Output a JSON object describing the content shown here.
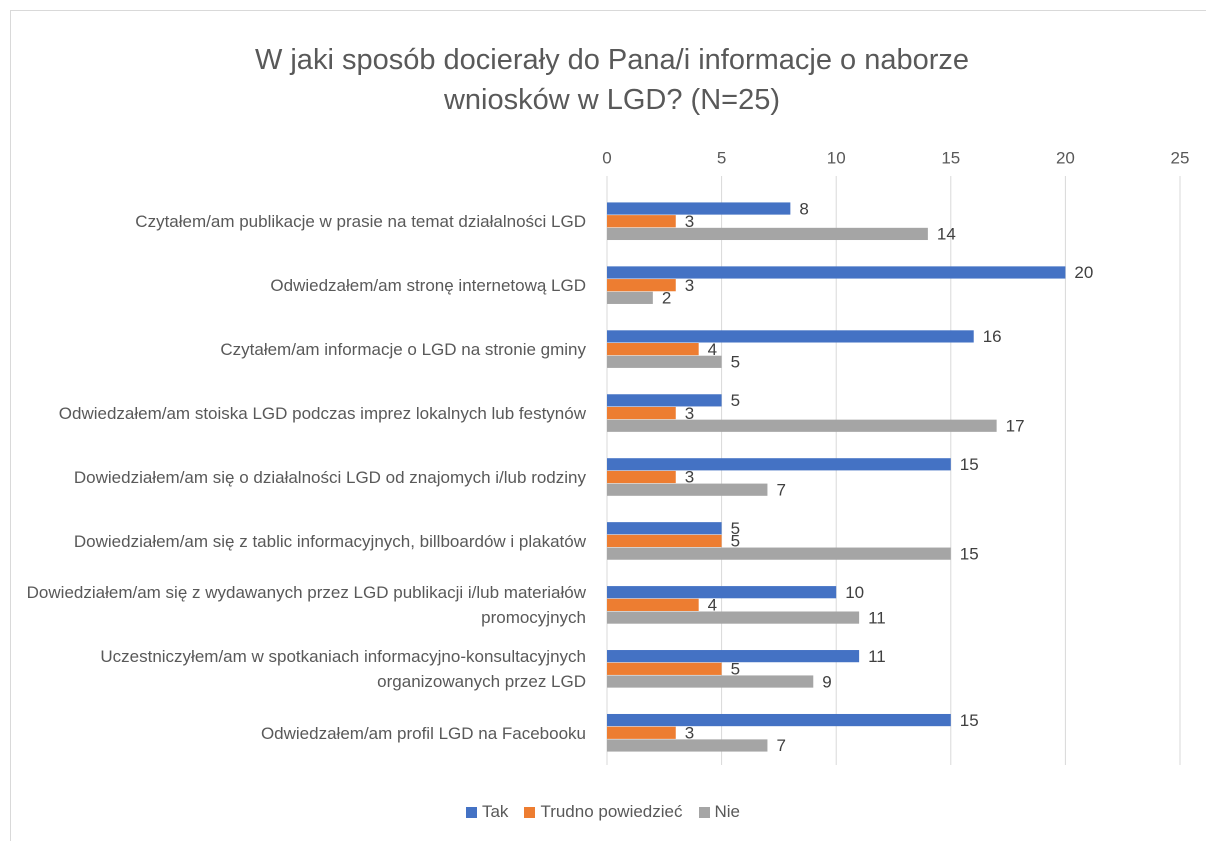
{
  "chart_data": {
    "type": "bar",
    "orientation": "horizontal",
    "title": "W jaki sposób docierały do Pana/i informacje o naborze wniosków w LGD? (N=25)",
    "categories": [
      "Czytałem/am publikacje w prasie na temat działalności LGD",
      "Odwiedzałem/am stronę internetową LGD",
      "Czytałem/am informacje o LGD na stronie gminy",
      "Odwiedzałem/am stoiska LGD podczas imprez lokalnych lub festynów",
      "Dowiedziałem/am się o działalności LGD od znajomych i/lub rodziny",
      "Dowiedziałem/am się z tablic informacyjnych, billboardów i plakatów",
      "Dowiedziałem/am się z wydawanych przez LGD publikacji i/lub materiałów promocyjnych",
      "Uczestniczyłem/am w spotkaniach informacyjno-konsultacyjnych organizowanych przez LGD",
      "Odwiedzałem/am profil LGD na Facebooku"
    ],
    "series": [
      {
        "name": "Tak",
        "color": "#4472c4",
        "values": [
          8,
          20,
          16,
          5,
          15,
          5,
          10,
          11,
          15
        ]
      },
      {
        "name": "Trudno powiedzieć",
        "color": "#ed7d31",
        "values": [
          3,
          3,
          4,
          3,
          3,
          5,
          4,
          5,
          3
        ]
      },
      {
        "name": "Nie",
        "color": "#a5a5a5",
        "values": [
          14,
          2,
          5,
          17,
          7,
          15,
          11,
          9,
          7
        ]
      }
    ],
    "xlim": [
      0,
      25
    ],
    "xticks": [
      0,
      5,
      10,
      15,
      20,
      25
    ],
    "grid": true,
    "legend": "bottom"
  }
}
